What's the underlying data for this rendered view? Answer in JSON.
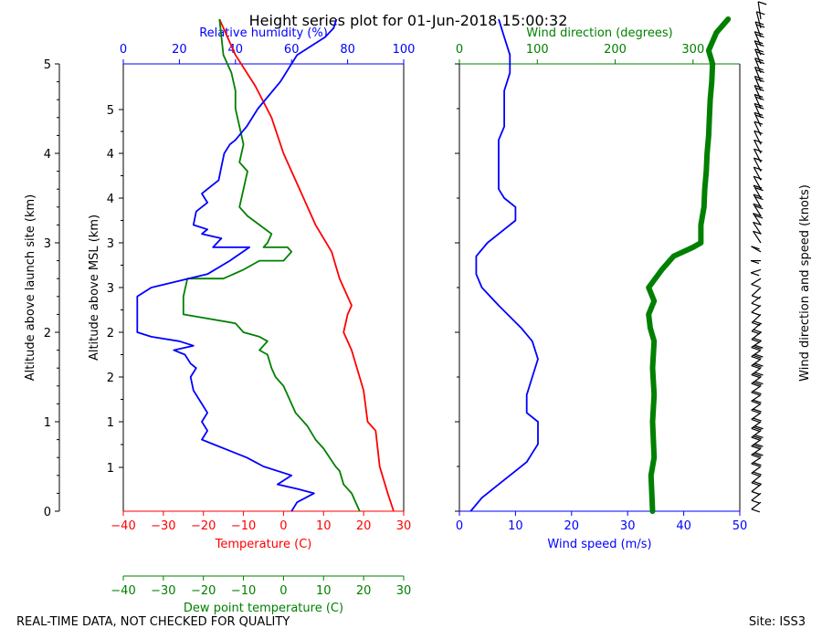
{
  "title": "Height series plot for 01-Jun-2018 15:00:32",
  "footer": {
    "quality_note": "REAL-TIME DATA, NOT CHECKED FOR QUALITY",
    "site": "Site: ISS3"
  },
  "colors": {
    "temperature": "#ff0000",
    "dewpoint": "#008000",
    "humidity": "#0000ff",
    "wind_speed": "#0000ff",
    "wind_direction": "#008000",
    "barbs": "#000000"
  },
  "chart_data": [
    {
      "id": "thermo",
      "type": "line",
      "ylabel_left": "Altitude above launch site (km)",
      "ylabel_inner": "Altitude above MSL (km)",
      "ylim_agl": [
        0,
        5
      ],
      "yticks_agl": [
        "0",
        "1",
        "2",
        "3",
        "4",
        "5"
      ],
      "yticks_msl": [
        "1",
        "1",
        "2",
        "2",
        "3",
        "3",
        "4",
        "4",
        "5"
      ],
      "axes": {
        "temperature": {
          "label": "Temperature (C)",
          "xlim": [
            -40,
            30
          ],
          "ticks": [
            "−40",
            "−30",
            "−20",
            "−10",
            "0",
            "10",
            "20",
            "30"
          ]
        },
        "dewpoint": {
          "label": "Dew point temperature (C)",
          "xlim": [
            -40,
            30
          ],
          "ticks": [
            "−40",
            "−30",
            "−20",
            "−10",
            "0",
            "10",
            "20",
            "30"
          ]
        },
        "humidity": {
          "label": "Relative humidity (%)",
          "xlim": [
            0,
            100
          ],
          "ticks": [
            "0",
            "20",
            "40",
            "60",
            "80",
            "100"
          ]
        }
      },
      "series": [
        {
          "name": "Temperature",
          "axis": "temperature",
          "points": [
            [
              27.5,
              0
            ],
            [
              26,
              0.2
            ],
            [
              24,
              0.5
            ],
            [
              23,
              0.9
            ],
            [
              21,
              1.0
            ],
            [
              20,
              1.35
            ],
            [
              17,
              1.8
            ],
            [
              15,
              2.0
            ],
            [
              16,
              2.2
            ],
            [
              17,
              2.3
            ],
            [
              14,
              2.6
            ],
            [
              12,
              2.9
            ],
            [
              8,
              3.2
            ],
            [
              4,
              3.6
            ],
            [
              0,
              4.0
            ],
            [
              -3,
              4.4
            ],
            [
              -7,
              4.75
            ],
            [
              -12,
              5.1
            ],
            [
              -16,
              5.5
            ]
          ]
        },
        {
          "name": "Dew point",
          "axis": "dewpoint",
          "points": [
            [
              19,
              0
            ],
            [
              18,
              0.1
            ],
            [
              17,
              0.2
            ],
            [
              15,
              0.3
            ],
            [
              14,
              0.45
            ],
            [
              13,
              0.5
            ],
            [
              10,
              0.7
            ],
            [
              8,
              0.8
            ],
            [
              6,
              0.95
            ],
            [
              3,
              1.1
            ],
            [
              2,
              1.2
            ],
            [
              0,
              1.4
            ],
            [
              -2,
              1.5
            ],
            [
              -3,
              1.6
            ],
            [
              -4,
              1.75
            ],
            [
              -6,
              1.8
            ],
            [
              -4,
              1.9
            ],
            [
              -6,
              1.95
            ],
            [
              -10,
              2.0
            ],
            [
              -12,
              2.1
            ],
            [
              -25,
              2.2
            ],
            [
              -25,
              2.4
            ],
            [
              -24,
              2.6
            ],
            [
              -15,
              2.6
            ],
            [
              -10,
              2.7
            ],
            [
              -6,
              2.8
            ],
            [
              0,
              2.8
            ],
            [
              2,
              2.9
            ],
            [
              1,
              2.95
            ],
            [
              -5,
              2.95
            ],
            [
              -4,
              3.0
            ],
            [
              -3,
              3.1
            ],
            [
              -6,
              3.2
            ],
            [
              -9,
              3.3
            ],
            [
              -11,
              3.4
            ],
            [
              -10,
              3.6
            ],
            [
              -9,
              3.8
            ],
            [
              -11,
              3.9
            ],
            [
              -10,
              4.1
            ],
            [
              -11,
              4.3
            ],
            [
              -12,
              4.5
            ],
            [
              -12,
              4.7
            ],
            [
              -13,
              4.9
            ],
            [
              -15,
              5.1
            ],
            [
              -16,
              5.5
            ]
          ]
        },
        {
          "name": "Relative humidity",
          "axis": "humidity",
          "points": [
            [
              60,
              0
            ],
            [
              62,
              0.1
            ],
            [
              68,
              0.2
            ],
            [
              62,
              0.25
            ],
            [
              55,
              0.3
            ],
            [
              60,
              0.4
            ],
            [
              50,
              0.5
            ],
            [
              44,
              0.6
            ],
            [
              32,
              0.75
            ],
            [
              28,
              0.8
            ],
            [
              30,
              0.9
            ],
            [
              28,
              1.0
            ],
            [
              30,
              1.1
            ],
            [
              28,
              1.2
            ],
            [
              25,
              1.35
            ],
            [
              24,
              1.5
            ],
            [
              26,
              1.6
            ],
            [
              24,
              1.65
            ],
            [
              22,
              1.75
            ],
            [
              18,
              1.8
            ],
            [
              25,
              1.85
            ],
            [
              20,
              1.9
            ],
            [
              10,
              1.95
            ],
            [
              5,
              2.0
            ],
            [
              5,
              2.2
            ],
            [
              5,
              2.4
            ],
            [
              10,
              2.5
            ],
            [
              30,
              2.65
            ],
            [
              38,
              2.8
            ],
            [
              45,
              2.95
            ],
            [
              32,
              2.95
            ],
            [
              35,
              3.05
            ],
            [
              28,
              3.1
            ],
            [
              30,
              3.15
            ],
            [
              25,
              3.2
            ],
            [
              26,
              3.35
            ],
            [
              30,
              3.45
            ],
            [
              28,
              3.55
            ],
            [
              32,
              3.65
            ],
            [
              34,
              3.7
            ],
            [
              35,
              3.85
            ],
            [
              36,
              4.0
            ],
            [
              38,
              4.1
            ],
            [
              40,
              4.15
            ],
            [
              44,
              4.3
            ],
            [
              48,
              4.5
            ],
            [
              56,
              4.8
            ],
            [
              62,
              5.1
            ],
            [
              72,
              5.3
            ],
            [
              75,
              5.4
            ],
            [
              76,
              5.5
            ]
          ]
        }
      ]
    },
    {
      "id": "wind",
      "type": "line",
      "ylabel_right": "Wind direction and speed (knots)",
      "ylim_agl": [
        0,
        5
      ],
      "axes": {
        "wind_speed": {
          "label": "Wind speed (m/s)",
          "xlim": [
            0,
            50
          ],
          "ticks": [
            "0",
            "10",
            "20",
            "30",
            "40",
            "50"
          ]
        },
        "wind_direction": {
          "label": "Wind direction (degrees)",
          "xlim": [
            0,
            360
          ],
          "ticks": [
            "0",
            "100",
            "200",
            "300"
          ]
        }
      },
      "series": [
        {
          "name": "Wind speed",
          "axis": "wind_speed",
          "points": [
            [
              2,
              0
            ],
            [
              4,
              0.15
            ],
            [
              7,
              0.3
            ],
            [
              10,
              0.45
            ],
            [
              12,
              0.55
            ],
            [
              13,
              0.65
            ],
            [
              14,
              0.75
            ],
            [
              14,
              1.0
            ],
            [
              12,
              1.1
            ],
            [
              12,
              1.3
            ],
            [
              13,
              1.5
            ],
            [
              14,
              1.7
            ],
            [
              13,
              1.9
            ],
            [
              11,
              2.05
            ],
            [
              7,
              2.3
            ],
            [
              4,
              2.5
            ],
            [
              3,
              2.65
            ],
            [
              3,
              2.85
            ],
            [
              5,
              3.0
            ],
            [
              8,
              3.15
            ],
            [
              10,
              3.25
            ],
            [
              10,
              3.4
            ],
            [
              8,
              3.5
            ],
            [
              7,
              3.6
            ],
            [
              7,
              3.9
            ],
            [
              7,
              4.15
            ],
            [
              8,
              4.3
            ],
            [
              8,
              4.5
            ],
            [
              8,
              4.7
            ],
            [
              9,
              4.9
            ],
            [
              9,
              5.1
            ],
            [
              8,
              5.3
            ],
            [
              7,
              5.5
            ]
          ]
        },
        {
          "name": "Wind direction",
          "axis": "wind_direction",
          "points": [
            [
              248,
              0
            ],
            [
              246,
              0.4
            ],
            [
              250,
              0.6
            ],
            [
              248,
              1.0
            ],
            [
              250,
              1.3
            ],
            [
              248,
              1.6
            ],
            [
              250,
              1.9
            ],
            [
              245,
              2.05
            ],
            [
              243,
              2.2
            ],
            [
              250,
              2.35
            ],
            [
              243,
              2.5
            ],
            [
              260,
              2.7
            ],
            [
              275,
              2.85
            ],
            [
              300,
              2.95
            ],
            [
              310,
              3.0
            ],
            [
              310,
              3.2
            ],
            [
              314,
              3.4
            ],
            [
              315,
              3.6
            ],
            [
              317,
              3.8
            ],
            [
              318,
              4.0
            ],
            [
              320,
              4.2
            ],
            [
              321,
              4.4
            ],
            [
              322,
              4.6
            ],
            [
              324,
              4.8
            ],
            [
              325,
              5.0
            ],
            [
              320,
              5.15
            ],
            [
              330,
              5.35
            ],
            [
              345,
              5.5
            ]
          ]
        }
      ]
    }
  ]
}
